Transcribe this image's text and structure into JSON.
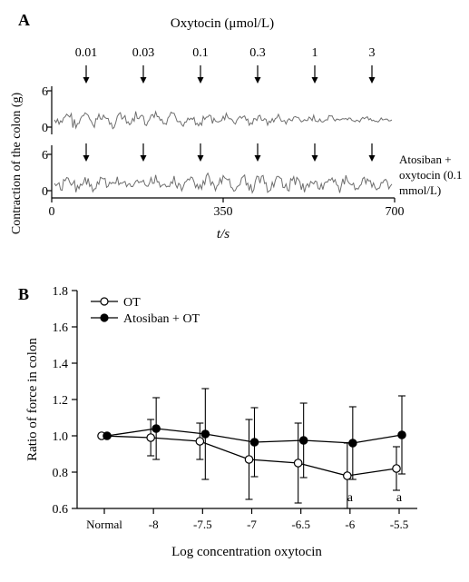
{
  "panelA": {
    "label": "A",
    "title": "Oxytocin (μmol/L)",
    "doses": [
      "0.01",
      "0.03",
      "0.1",
      "0.3",
      "1",
      "3"
    ],
    "yLabel": "Contraction of the colon (g)",
    "yTicks": [
      "0",
      "6",
      "0",
      "6"
    ],
    "xLabel": "t/s",
    "xTicks": [
      "0",
      "350",
      "700"
    ],
    "sideLabel1": "Atosiban +",
    "sideLabel2": "oxytocin (0.1",
    "sideLabel3": "mmol/L)",
    "traceColor": "#6e6e6e",
    "arrowColor": "#000000",
    "axisColor": "#000000",
    "fontSize": 14,
    "labelFontSize": 18
  },
  "panelB": {
    "label": "B",
    "yLabel": "Ratio of force in colon",
    "xLabel": "Log concentration oxytocin",
    "legend": {
      "items": [
        {
          "label": "OT",
          "marker": "open"
        },
        {
          "label": "Atosiban + OT",
          "marker": "filled"
        }
      ]
    },
    "xCategories": [
      "Normal",
      "-8",
      "-7.5",
      "-7",
      "-6.5",
      "-6",
      "-5.5"
    ],
    "yTicks": [
      "0.6",
      "0.8",
      "1.0",
      "1.2",
      "1.4",
      "1.6",
      "1.8"
    ],
    "ylim": [
      0.6,
      1.8
    ],
    "series": [
      {
        "name": "OT",
        "marker": "open",
        "values": [
          1.0,
          0.99,
          0.97,
          0.87,
          0.85,
          0.78,
          0.82
        ],
        "errors": [
          0.0,
          0.1,
          0.1,
          0.22,
          0.22,
          0.18,
          0.12
        ]
      },
      {
        "name": "Atosiban + OT",
        "marker": "filled",
        "values": [
          1.0,
          1.04,
          1.01,
          0.965,
          0.975,
          0.96,
          1.005
        ],
        "errors": [
          0.0,
          0.17,
          0.25,
          0.19,
          0.205,
          0.2,
          0.215
        ]
      }
    ],
    "annotations": [
      {
        "text": "a",
        "xIndex": 5
      },
      {
        "text": "a",
        "xIndex": 6
      }
    ],
    "colors": {
      "line": "#000000",
      "markerFill": "#000000",
      "markerOpen": "#ffffff",
      "axis": "#000000"
    },
    "fontSize": 14,
    "labelFontSize": 18
  }
}
